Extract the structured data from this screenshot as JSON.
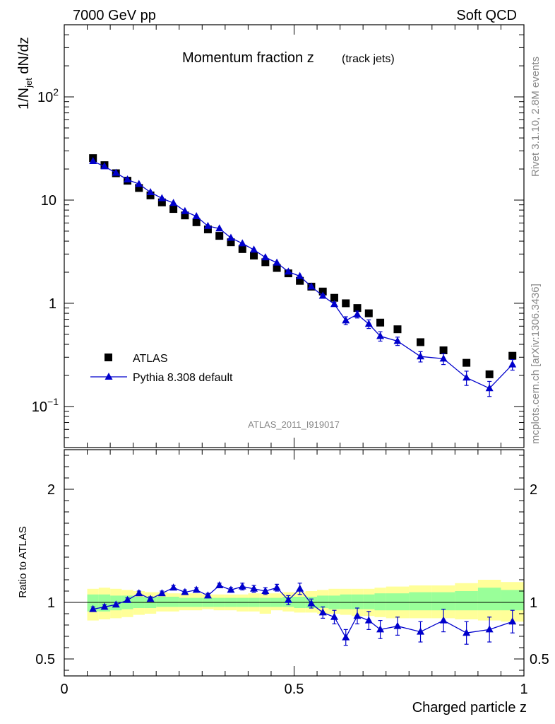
{
  "header": {
    "energy": "7000 GeV pp",
    "process": "Soft QCD"
  },
  "side_labels": {
    "rivet": "Rivet 3.1.10,  2.8M events",
    "source": "mcplots.cern.ch [arXiv:1306.3436]"
  },
  "chart_data": [
    {
      "type": "scatter",
      "panel": "main",
      "title_main": "Momentum fraction z",
      "title_sub": "(track jets)",
      "ylabel": "1/N_jet dN/dz",
      "yscale": "log",
      "ylim": [
        0.04,
        500
      ],
      "xlim": [
        0,
        1
      ],
      "yticks": [
        {
          "value": 100,
          "label": "10",
          "exp": "2"
        },
        {
          "value": 10,
          "label": "10",
          "exp": ""
        },
        {
          "value": 1,
          "label": "1",
          "exp": ""
        },
        {
          "value": 0.1,
          "label": "10",
          "exp": "−1"
        }
      ],
      "analysis_tag": "ATLAS_2011_I919017",
      "legend_position": "bottom-left",
      "series": [
        {
          "name": "ATLAS",
          "color": "#000000",
          "marker": "square",
          "x": [
            0.0625,
            0.0875,
            0.1125,
            0.1375,
            0.1625,
            0.1875,
            0.2125,
            0.2375,
            0.2625,
            0.2875,
            0.3125,
            0.3375,
            0.3625,
            0.3875,
            0.4125,
            0.4375,
            0.4625,
            0.4875,
            0.5125,
            0.5375,
            0.5625,
            0.5875,
            0.6125,
            0.6375,
            0.6625,
            0.6875,
            0.725,
            0.775,
            0.825,
            0.875,
            0.925,
            0.975
          ],
          "y": [
            25.5,
            21.8,
            18.2,
            15.4,
            13.1,
            11.1,
            9.5,
            8.2,
            7.1,
            6.1,
            5.2,
            4.5,
            3.9,
            3.35,
            2.9,
            2.5,
            2.2,
            1.95,
            1.65,
            1.45,
            1.3,
            1.13,
            1.0,
            0.9,
            0.8,
            0.65,
            0.56,
            0.42,
            0.35,
            0.265,
            0.205,
            0.31
          ]
        },
        {
          "name": "Pythia 8.308 default",
          "color": "#0000cc",
          "marker": "triangle",
          "x": [
            0.0625,
            0.0875,
            0.1125,
            0.1375,
            0.1625,
            0.1875,
            0.2125,
            0.2375,
            0.2625,
            0.2875,
            0.3125,
            0.3375,
            0.3625,
            0.3875,
            0.4125,
            0.4375,
            0.4625,
            0.4875,
            0.5125,
            0.5375,
            0.5625,
            0.5875,
            0.6125,
            0.6375,
            0.6625,
            0.6875,
            0.725,
            0.775,
            0.825,
            0.875,
            0.925,
            0.975
          ],
          "y": [
            23.8,
            21.2,
            18.3,
            15.8,
            14.3,
            11.9,
            10.4,
            9.35,
            7.8,
            6.95,
            5.6,
            5.3,
            4.3,
            3.8,
            3.3,
            2.78,
            2.47,
            2.02,
            1.83,
            1.45,
            1.18,
            0.98,
            0.68,
            0.78,
            0.63,
            0.48,
            0.43,
            0.305,
            0.29,
            0.19,
            0.15,
            0.255
          ],
          "yerr": [
            0.3,
            0.3,
            0.3,
            0.25,
            0.2,
            0.2,
            0.18,
            0.15,
            0.13,
            0.12,
            0.1,
            0.1,
            0.08,
            0.07,
            0.06,
            0.05,
            0.05,
            0.05,
            0.05,
            0.04,
            0.04,
            0.04,
            0.06,
            0.06,
            0.06,
            0.05,
            0.04,
            0.035,
            0.035,
            0.03,
            0.025,
            0.03
          ]
        }
      ]
    },
    {
      "type": "scatter",
      "panel": "ratio",
      "ylabel": "Ratio to ATLAS",
      "xlabel": "Charged particle z",
      "ylim": [
        0.35,
        2.35
      ],
      "xlim": [
        0,
        1
      ],
      "yticks": [
        0.5,
        1,
        2
      ],
      "ytick_labels": [
        "0.5",
        "1",
        "2"
      ],
      "xticks": [
        0,
        0.5,
        1
      ],
      "xtick_labels": [
        "0",
        "0.5",
        "1"
      ],
      "band_colors": {
        "inner": "#99ff99",
        "outer": "#ffff99"
      },
      "bins": [
        {
          "lo": 0.05,
          "hi": 0.075,
          "g": [
            0.92,
            1.07
          ],
          "y": [
            0.84,
            1.12
          ]
        },
        {
          "lo": 0.075,
          "hi": 0.1,
          "g": [
            0.92,
            1.07
          ],
          "y": [
            0.85,
            1.13
          ]
        },
        {
          "lo": 0.1,
          "hi": 0.125,
          "g": [
            0.93,
            1.06
          ],
          "y": [
            0.86,
            1.12
          ]
        },
        {
          "lo": 0.125,
          "hi": 0.15,
          "g": [
            0.94,
            1.06
          ],
          "y": [
            0.87,
            1.11
          ]
        },
        {
          "lo": 0.15,
          "hi": 0.175,
          "g": [
            0.95,
            1.05
          ],
          "y": [
            0.89,
            1.1
          ]
        },
        {
          "lo": 0.175,
          "hi": 0.2,
          "g": [
            0.95,
            1.05
          ],
          "y": [
            0.9,
            1.09
          ]
        },
        {
          "lo": 0.2,
          "hi": 0.225,
          "g": [
            0.96,
            1.05
          ],
          "y": [
            0.92,
            1.09
          ]
        },
        {
          "lo": 0.225,
          "hi": 0.25,
          "g": [
            0.96,
            1.05
          ],
          "y": [
            0.92,
            1.08
          ]
        },
        {
          "lo": 0.25,
          "hi": 0.275,
          "g": [
            0.96,
            1.04
          ],
          "y": [
            0.93,
            1.08
          ]
        },
        {
          "lo": 0.275,
          "hi": 0.3,
          "g": [
            0.96,
            1.04
          ],
          "y": [
            0.93,
            1.08
          ]
        },
        {
          "lo": 0.3,
          "hi": 0.325,
          "g": [
            0.96,
            1.04
          ],
          "y": [
            0.94,
            1.07
          ]
        },
        {
          "lo": 0.325,
          "hi": 0.35,
          "g": [
            0.96,
            1.04
          ],
          "y": [
            0.93,
            1.07
          ]
        },
        {
          "lo": 0.35,
          "hi": 0.375,
          "g": [
            0.96,
            1.04
          ],
          "y": [
            0.93,
            1.07
          ]
        },
        {
          "lo": 0.375,
          "hi": 0.4,
          "g": [
            0.96,
            1.04
          ],
          "y": [
            0.92,
            1.07
          ]
        },
        {
          "lo": 0.4,
          "hi": 0.425,
          "g": [
            0.96,
            1.04
          ],
          "y": [
            0.92,
            1.08
          ]
        },
        {
          "lo": 0.425,
          "hi": 0.45,
          "g": [
            0.96,
            1.04
          ],
          "y": [
            0.9,
            1.08
          ]
        },
        {
          "lo": 0.45,
          "hi": 0.475,
          "g": [
            0.96,
            1.04
          ],
          "y": [
            0.93,
            1.08
          ]
        },
        {
          "lo": 0.475,
          "hi": 0.5,
          "g": [
            0.96,
            1.05
          ],
          "y": [
            0.92,
            1.09
          ]
        },
        {
          "lo": 0.5,
          "hi": 0.525,
          "g": [
            0.95,
            1.05
          ],
          "y": [
            0.91,
            1.09
          ]
        },
        {
          "lo": 0.525,
          "hi": 0.55,
          "g": [
            0.95,
            1.05
          ],
          "y": [
            0.91,
            1.1
          ]
        },
        {
          "lo": 0.55,
          "hi": 0.575,
          "g": [
            0.95,
            1.06
          ],
          "y": [
            0.9,
            1.11
          ]
        },
        {
          "lo": 0.575,
          "hi": 0.6,
          "g": [
            0.94,
            1.06
          ],
          "y": [
            0.9,
            1.12
          ]
        },
        {
          "lo": 0.6,
          "hi": 0.625,
          "g": [
            0.94,
            1.07
          ],
          "y": [
            0.89,
            1.12
          ]
        },
        {
          "lo": 0.625,
          "hi": 0.65,
          "g": [
            0.94,
            1.07
          ],
          "y": [
            0.88,
            1.12
          ]
        },
        {
          "lo": 0.65,
          "hi": 0.675,
          "g": [
            0.94,
            1.07
          ],
          "y": [
            0.88,
            1.12
          ]
        },
        {
          "lo": 0.675,
          "hi": 0.7,
          "g": [
            0.93,
            1.08
          ],
          "y": [
            0.87,
            1.13
          ]
        },
        {
          "lo": 0.7,
          "hi": 0.75,
          "g": [
            0.93,
            1.08
          ],
          "y": [
            0.86,
            1.14
          ]
        },
        {
          "lo": 0.75,
          "hi": 0.8,
          "g": [
            0.93,
            1.09
          ],
          "y": [
            0.86,
            1.15
          ]
        },
        {
          "lo": 0.8,
          "hi": 0.85,
          "g": [
            0.93,
            1.09
          ],
          "y": [
            0.86,
            1.15
          ]
        },
        {
          "lo": 0.85,
          "hi": 0.9,
          "g": [
            0.93,
            1.1
          ],
          "y": [
            0.85,
            1.17
          ]
        },
        {
          "lo": 0.9,
          "hi": 0.95,
          "g": [
            0.93,
            1.13
          ],
          "y": [
            0.84,
            1.2
          ]
        },
        {
          "lo": 0.95,
          "hi": 1.0,
          "g": [
            0.93,
            1.11
          ],
          "y": [
            0.83,
            1.18
          ]
        }
      ],
      "ratio_series": {
        "name": "Pythia 8.308 default",
        "color": "#0000cc",
        "x": [
          0.0625,
          0.0875,
          0.1125,
          0.1375,
          0.1625,
          0.1875,
          0.2125,
          0.2375,
          0.2625,
          0.2875,
          0.3125,
          0.3375,
          0.3625,
          0.3875,
          0.4125,
          0.4375,
          0.4625,
          0.4875,
          0.5125,
          0.5375,
          0.5625,
          0.5875,
          0.6125,
          0.6375,
          0.6625,
          0.6875,
          0.725,
          0.775,
          0.825,
          0.875,
          0.925,
          0.975
        ],
        "y": [
          0.94,
          0.96,
          0.98,
          1.02,
          1.08,
          1.03,
          1.08,
          1.13,
          1.09,
          1.11,
          1.06,
          1.15,
          1.11,
          1.14,
          1.12,
          1.1,
          1.13,
          1.02,
          1.12,
          0.99,
          0.91,
          0.87,
          0.69,
          0.88,
          0.84,
          0.76,
          0.79,
          0.74,
          0.84,
          0.73,
          0.76,
          0.83
        ],
        "yerr": [
          0.02,
          0.02,
          0.02,
          0.02,
          0.02,
          0.02,
          0.02,
          0.02,
          0.02,
          0.02,
          0.02,
          0.02,
          0.02,
          0.03,
          0.03,
          0.03,
          0.03,
          0.04,
          0.05,
          0.04,
          0.05,
          0.06,
          0.07,
          0.07,
          0.08,
          0.08,
          0.08,
          0.09,
          0.1,
          0.1,
          0.11,
          0.1
        ]
      }
    }
  ]
}
